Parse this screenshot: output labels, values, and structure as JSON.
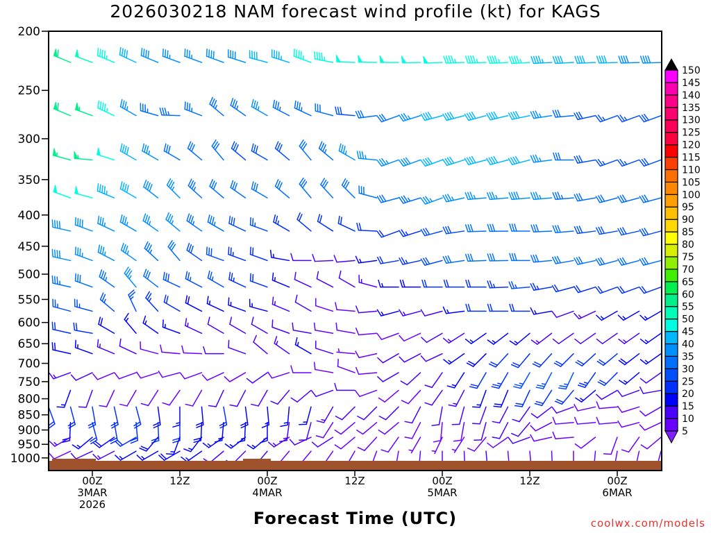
{
  "title": "2026030218 NAM forecast wind profile (kt) for KAGS",
  "xlabel": "Forecast Time (UTC)",
  "credit": "coolwx.com/models",
  "chart_data": {
    "type": "wind-barb-time-height",
    "title": "2026030218 NAM forecast wind profile (kt) for KAGS",
    "xlabel": "Forecast Time (UTC)",
    "ylabel": "Pressure (hPa)",
    "units": "kt",
    "ylim": [
      1000,
      200
    ],
    "yscale": "log",
    "yticks": [
      200,
      250,
      300,
      350,
      400,
      450,
      500,
      550,
      600,
      650,
      700,
      750,
      800,
      850,
      900,
      950,
      1000
    ],
    "xlim_hours": [
      0,
      84
    ],
    "xticks": [
      {
        "hour": 6,
        "lines": [
          "00Z",
          "3MAR",
          "2026"
        ]
      },
      {
        "hour": 18,
        "lines": [
          "12Z"
        ]
      },
      {
        "hour": 30,
        "lines": [
          "00Z",
          "4MAR"
        ]
      },
      {
        "hour": 42,
        "lines": [
          "12Z"
        ]
      },
      {
        "hour": 54,
        "lines": [
          "00Z",
          "5MAR"
        ]
      },
      {
        "hour": 66,
        "lines": [
          "12Z"
        ]
      },
      {
        "hour": 78,
        "lines": [
          "00Z",
          "6MAR"
        ]
      }
    ],
    "hours": [
      0,
      6,
      12,
      18,
      24,
      30,
      36,
      42,
      48,
      54,
      60,
      66,
      72,
      78,
      84
    ],
    "levels": [
      {
        "p": 225,
        "dir": [
          295,
          290,
          295,
          290,
          290,
          285,
          290,
          272,
          270,
          268,
          268,
          267,
          267,
          268,
          268
        ],
        "spd": [
          65,
          52,
          42,
          35,
          38,
          40,
          45,
          48,
          48,
          48,
          46,
          45,
          42,
          40,
          38
        ]
      },
      {
        "p": 275,
        "dir": [
          295,
          290,
          300,
          272,
          310,
          300,
          295,
          275,
          250,
          255,
          255,
          258,
          265,
          250,
          250
        ],
        "spd": [
          62,
          55,
          35,
          33,
          33,
          35,
          33,
          28,
          32,
          40,
          40,
          42,
          30,
          25,
          28
        ]
      },
      {
        "p": 325,
        "dir": [
          295,
          275,
          300,
          300,
          320,
          300,
          320,
          300,
          250,
          250,
          255,
          255,
          270,
          250,
          250
        ],
        "spd": [
          55,
          55,
          40,
          32,
          30,
          28,
          30,
          35,
          35,
          40,
          40,
          40,
          30,
          25,
          28
        ]
      },
      {
        "p": 375,
        "dir": [
          295,
          285,
          300,
          315,
          310,
          300,
          320,
          315,
          255,
          250,
          265,
          265,
          265,
          255,
          255
        ],
        "spd": [
          50,
          48,
          40,
          35,
          32,
          30,
          30,
          32,
          30,
          35,
          35,
          38,
          33,
          30,
          30
        ]
      },
      {
        "p": 425,
        "dir": [
          275,
          290,
          300,
          310,
          300,
          290,
          310,
          295,
          250,
          255,
          268,
          270,
          265,
          260,
          255
        ],
        "spd": [
          38,
          38,
          35,
          35,
          33,
          25,
          20,
          22,
          20,
          28,
          30,
          30,
          30,
          28,
          28
        ]
      },
      {
        "p": 475,
        "dir": [
          275,
          290,
          305,
          320,
          290,
          290,
          270,
          265,
          260,
          255,
          268,
          270,
          260,
          255,
          255
        ],
        "spd": [
          40,
          35,
          35,
          30,
          28,
          20,
          12,
          10,
          20,
          28,
          32,
          32,
          32,
          32,
          30
        ]
      },
      {
        "p": 525,
        "dir": [
          275,
          290,
          320,
          295,
          300,
          290,
          295,
          300,
          270,
          270,
          270,
          265,
          255,
          250,
          250
        ],
        "spd": [
          38,
          30,
          35,
          28,
          25,
          20,
          12,
          10,
          15,
          22,
          22,
          25,
          22,
          20,
          22
        ]
      },
      {
        "p": 575,
        "dir": [
          285,
          285,
          335,
          300,
          295,
          285,
          300,
          275,
          255,
          255,
          270,
          270,
          250,
          240,
          240
        ],
        "spd": [
          25,
          25,
          25,
          20,
          15,
          15,
          10,
          8,
          15,
          12,
          20,
          20,
          12,
          15,
          15
        ]
      },
      {
        "p": 625,
        "dir": [
          285,
          280,
          320,
          290,
          300,
          300,
          280,
          280,
          250,
          240,
          235,
          230,
          235,
          235,
          235
        ],
        "spd": [
          22,
          20,
          15,
          15,
          10,
          10,
          10,
          8,
          8,
          10,
          15,
          15,
          12,
          12,
          15
        ]
      },
      {
        "p": 675,
        "dir": [
          275,
          290,
          295,
          275,
          270,
          310,
          300,
          275,
          240,
          245,
          225,
          220,
          225,
          230,
          235
        ],
        "spd": [
          20,
          15,
          10,
          8,
          10,
          10,
          15,
          5,
          10,
          12,
          18,
          22,
          22,
          20,
          15
        ]
      },
      {
        "p": 725,
        "dir": [
          255,
          245,
          250,
          255,
          245,
          235,
          270,
          290,
          240,
          215,
          210,
          210,
          205,
          225,
          235
        ],
        "spd": [
          15,
          10,
          8,
          8,
          8,
          10,
          8,
          8,
          10,
          12,
          20,
          25,
          25,
          20,
          12
        ]
      },
      {
        "p": 775,
        "dir": [
          200,
          200,
          210,
          215,
          205,
          210,
          230,
          270,
          230,
          215,
          200,
          205,
          220,
          240,
          260
        ],
        "spd": [
          20,
          10,
          8,
          8,
          10,
          10,
          10,
          10,
          8,
          10,
          15,
          20,
          20,
          12,
          10
        ]
      },
      {
        "p": 825,
        "dir": [
          160,
          170,
          165,
          180,
          170,
          175,
          195,
          225,
          225,
          190,
          200,
          215,
          250,
          265,
          240
        ],
        "spd": [
          20,
          20,
          20,
          15,
          20,
          15,
          15,
          10,
          10,
          12,
          12,
          12,
          10,
          8,
          8
        ]
      },
      {
        "p": 875,
        "dir": [
          200,
          165,
          175,
          180,
          185,
          180,
          195,
          230,
          230,
          185,
          195,
          220,
          265,
          265,
          245
        ],
        "spd": [
          15,
          20,
          20,
          20,
          15,
          15,
          10,
          8,
          8,
          8,
          10,
          10,
          8,
          8,
          8
        ]
      },
      {
        "p": 925,
        "dir": [
          250,
          230,
          240,
          200,
          235,
          230,
          245,
          230,
          215,
          205,
          220,
          250,
          265,
          200,
          230
        ],
        "spd": [
          10,
          15,
          20,
          15,
          15,
          15,
          12,
          8,
          8,
          5,
          8,
          10,
          8,
          8,
          8
        ]
      },
      {
        "p": 975,
        "dir": [
          245,
          245,
          240,
          240,
          230,
          220,
          220,
          210,
          190,
          180,
          175,
          175,
          180,
          190,
          195
        ],
        "spd": [
          8,
          10,
          15,
          18,
          12,
          10,
          8,
          5,
          5,
          8,
          10,
          8,
          8,
          8,
          8
        ]
      }
    ],
    "colorbar": {
      "labels": [
        5,
        10,
        15,
        20,
        25,
        30,
        35,
        40,
        45,
        50,
        55,
        60,
        65,
        70,
        75,
        80,
        85,
        90,
        95,
        100,
        105,
        110,
        115,
        120,
        125,
        130,
        135,
        140,
        145,
        150
      ],
      "colors": [
        "#6a00ff",
        "#4a00ff",
        "#0000ff",
        "#0030ff",
        "#0050ff",
        "#0070ff",
        "#0090ff",
        "#00b8ff",
        "#00ffe0",
        "#00ffb8",
        "#00f08a",
        "#00f050",
        "#40f000",
        "#90f000",
        "#d8f000",
        "#ffff00",
        "#ffd800",
        "#ffc000",
        "#ffa000",
        "#ff8800",
        "#ff7000",
        "#ff4000",
        "#ff0000",
        "#ff0040",
        "#ff0058",
        "#ff0070",
        "#ff0088",
        "#ff00b0",
        "#ff00ff"
      ],
      "under_color": "#8020ff",
      "over_color": "#000000"
    },
    "ground_color": "#a0522d"
  }
}
